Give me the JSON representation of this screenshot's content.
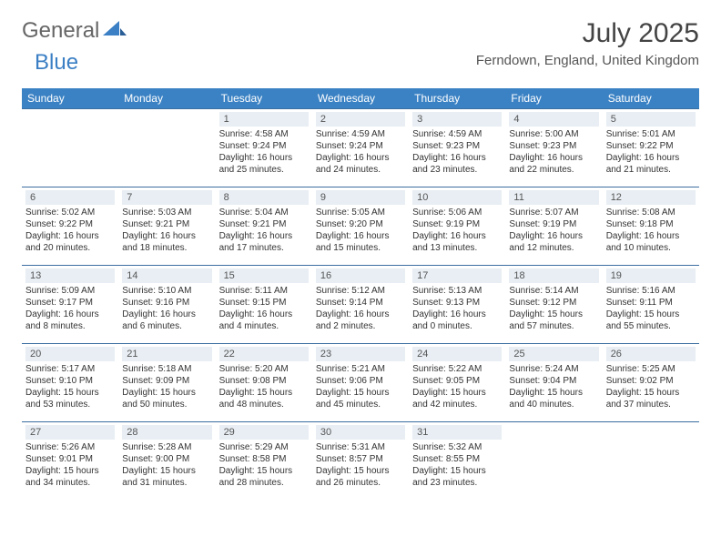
{
  "logo": {
    "general": "General",
    "blue": "Blue"
  },
  "title": "July 2025",
  "location": "Ferndown, England, United Kingdom",
  "colors": {
    "header_bg": "#3b82c4",
    "header_text": "#ffffff",
    "daynum_bg": "#e8eef4",
    "border": "#3b6ea0",
    "logo_blue": "#3b7fc4"
  },
  "dow": [
    "Sunday",
    "Monday",
    "Tuesday",
    "Wednesday",
    "Thursday",
    "Friday",
    "Saturday"
  ],
  "weeks": [
    [
      null,
      null,
      {
        "n": "1",
        "sr": "4:58 AM",
        "ss": "9:24 PM",
        "dl": "16 hours and 25 minutes."
      },
      {
        "n": "2",
        "sr": "4:59 AM",
        "ss": "9:24 PM",
        "dl": "16 hours and 24 minutes."
      },
      {
        "n": "3",
        "sr": "4:59 AM",
        "ss": "9:23 PM",
        "dl": "16 hours and 23 minutes."
      },
      {
        "n": "4",
        "sr": "5:00 AM",
        "ss": "9:23 PM",
        "dl": "16 hours and 22 minutes."
      },
      {
        "n": "5",
        "sr": "5:01 AM",
        "ss": "9:22 PM",
        "dl": "16 hours and 21 minutes."
      }
    ],
    [
      {
        "n": "6",
        "sr": "5:02 AM",
        "ss": "9:22 PM",
        "dl": "16 hours and 20 minutes."
      },
      {
        "n": "7",
        "sr": "5:03 AM",
        "ss": "9:21 PM",
        "dl": "16 hours and 18 minutes."
      },
      {
        "n": "8",
        "sr": "5:04 AM",
        "ss": "9:21 PM",
        "dl": "16 hours and 17 minutes."
      },
      {
        "n": "9",
        "sr": "5:05 AM",
        "ss": "9:20 PM",
        "dl": "16 hours and 15 minutes."
      },
      {
        "n": "10",
        "sr": "5:06 AM",
        "ss": "9:19 PM",
        "dl": "16 hours and 13 minutes."
      },
      {
        "n": "11",
        "sr": "5:07 AM",
        "ss": "9:19 PM",
        "dl": "16 hours and 12 minutes."
      },
      {
        "n": "12",
        "sr": "5:08 AM",
        "ss": "9:18 PM",
        "dl": "16 hours and 10 minutes."
      }
    ],
    [
      {
        "n": "13",
        "sr": "5:09 AM",
        "ss": "9:17 PM",
        "dl": "16 hours and 8 minutes."
      },
      {
        "n": "14",
        "sr": "5:10 AM",
        "ss": "9:16 PM",
        "dl": "16 hours and 6 minutes."
      },
      {
        "n": "15",
        "sr": "5:11 AM",
        "ss": "9:15 PM",
        "dl": "16 hours and 4 minutes."
      },
      {
        "n": "16",
        "sr": "5:12 AM",
        "ss": "9:14 PM",
        "dl": "16 hours and 2 minutes."
      },
      {
        "n": "17",
        "sr": "5:13 AM",
        "ss": "9:13 PM",
        "dl": "16 hours and 0 minutes."
      },
      {
        "n": "18",
        "sr": "5:14 AM",
        "ss": "9:12 PM",
        "dl": "15 hours and 57 minutes."
      },
      {
        "n": "19",
        "sr": "5:16 AM",
        "ss": "9:11 PM",
        "dl": "15 hours and 55 minutes."
      }
    ],
    [
      {
        "n": "20",
        "sr": "5:17 AM",
        "ss": "9:10 PM",
        "dl": "15 hours and 53 minutes."
      },
      {
        "n": "21",
        "sr": "5:18 AM",
        "ss": "9:09 PM",
        "dl": "15 hours and 50 minutes."
      },
      {
        "n": "22",
        "sr": "5:20 AM",
        "ss": "9:08 PM",
        "dl": "15 hours and 48 minutes."
      },
      {
        "n": "23",
        "sr": "5:21 AM",
        "ss": "9:06 PM",
        "dl": "15 hours and 45 minutes."
      },
      {
        "n": "24",
        "sr": "5:22 AM",
        "ss": "9:05 PM",
        "dl": "15 hours and 42 minutes."
      },
      {
        "n": "25",
        "sr": "5:24 AM",
        "ss": "9:04 PM",
        "dl": "15 hours and 40 minutes."
      },
      {
        "n": "26",
        "sr": "5:25 AM",
        "ss": "9:02 PM",
        "dl": "15 hours and 37 minutes."
      }
    ],
    [
      {
        "n": "27",
        "sr": "5:26 AM",
        "ss": "9:01 PM",
        "dl": "15 hours and 34 minutes."
      },
      {
        "n": "28",
        "sr": "5:28 AM",
        "ss": "9:00 PM",
        "dl": "15 hours and 31 minutes."
      },
      {
        "n": "29",
        "sr": "5:29 AM",
        "ss": "8:58 PM",
        "dl": "15 hours and 28 minutes."
      },
      {
        "n": "30",
        "sr": "5:31 AM",
        "ss": "8:57 PM",
        "dl": "15 hours and 26 minutes."
      },
      {
        "n": "31",
        "sr": "5:32 AM",
        "ss": "8:55 PM",
        "dl": "15 hours and 23 minutes."
      },
      null,
      null
    ]
  ],
  "labels": {
    "sunrise": "Sunrise: ",
    "sunset": "Sunset: ",
    "daylight": "Daylight: "
  }
}
